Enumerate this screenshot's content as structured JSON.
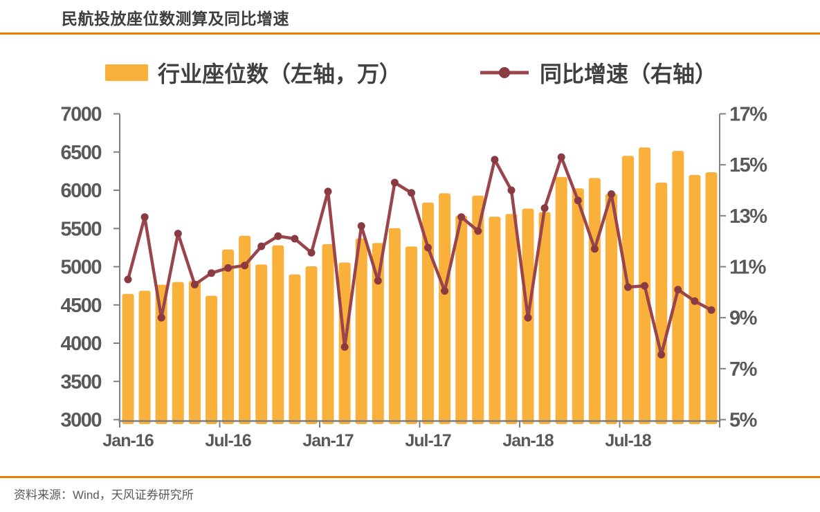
{
  "header": {
    "title": "民航投放座位数测算及同比增速"
  },
  "footer": {
    "source": "资料来源：Wind，天风证券研究所"
  },
  "legend": [
    {
      "label": "行业座位数（左轴，万）",
      "type": "bar"
    },
    {
      "label": "同比增速（右轴）",
      "type": "line"
    }
  ],
  "colors": {
    "bar": "#F9B13C",
    "line": "#9A454B",
    "marker": "#8A3B42",
    "accent_rule": "#EE7E01",
    "axis_line": "#7F7F7F",
    "axis_text": "#595959"
  },
  "chart_data": {
    "type": "bar+line",
    "title": "民航投放座位数测算及同比增速",
    "categories": [
      "Jan-16",
      "Feb-16",
      "Mar-16",
      "Apr-16",
      "May-16",
      "Jun-16",
      "Jul-16",
      "Aug-16",
      "Sep-16",
      "Oct-16",
      "Nov-16",
      "Dec-16",
      "Jan-17",
      "Feb-17",
      "Mar-17",
      "Apr-17",
      "May-17",
      "Jun-17",
      "Jul-17",
      "Aug-17",
      "Sep-17",
      "Oct-17",
      "Nov-17",
      "Dec-17",
      "Jan-18",
      "Feb-18",
      "Mar-18",
      "Apr-18",
      "May-18",
      "Jun-18",
      "Jul-18",
      "Aug-18",
      "Sep-18",
      "Oct-18",
      "Nov-18",
      "Dec-18"
    ],
    "series": [
      {
        "name": "行业座位数（左轴，万）",
        "type": "bar",
        "axis": "left",
        "color": "#F9B13C",
        "values": [
          4645,
          4685,
          4765,
          4800,
          4815,
          4620,
          5225,
          5405,
          5030,
          5280,
          4900,
          5005,
          5295,
          5055,
          5370,
          5310,
          5505,
          5265,
          5840,
          5960,
          5670,
          5930,
          5655,
          5690,
          5760,
          5715,
          6175,
          6025,
          6160,
          5955,
          6450,
          6560,
          6100,
          6515,
          6200,
          6235
        ]
      },
      {
        "name": "同比增速（右轴）",
        "type": "line",
        "axis": "right",
        "color": "#9A454B",
        "marker_color": "#8A3B42",
        "values": [
          10.5,
          12.95,
          9.0,
          12.3,
          10.3,
          10.75,
          10.95,
          11.05,
          11.8,
          12.2,
          12.1,
          11.55,
          13.95,
          7.85,
          12.6,
          10.45,
          14.3,
          13.9,
          11.75,
          10.05,
          12.95,
          12.4,
          15.2,
          14.0,
          9.0,
          13.3,
          15.3,
          13.6,
          11.7,
          13.85,
          10.2,
          10.25,
          7.55,
          10.1,
          9.65,
          9.3
        ]
      }
    ],
    "left_axis": {
      "min": 3000,
      "max": 7000,
      "step": 500,
      "tick_labels": [
        "7000",
        "6500",
        "6000",
        "5500",
        "5000",
        "4500",
        "4000",
        "3500",
        "3000"
      ]
    },
    "right_axis": {
      "min": 5,
      "max": 17,
      "step": 2,
      "tick_labels": [
        "17%",
        "15%",
        "13%",
        "11%",
        "9%",
        "7%",
        "5%"
      ]
    },
    "x_axis": {
      "tick_labels": [
        "Jan-16",
        "Jul-16",
        "Jan-17",
        "Jul-17",
        "Jan-18",
        "Jul-18"
      ],
      "months_per_tick": 6
    },
    "grid": false,
    "legend_position": "top"
  }
}
